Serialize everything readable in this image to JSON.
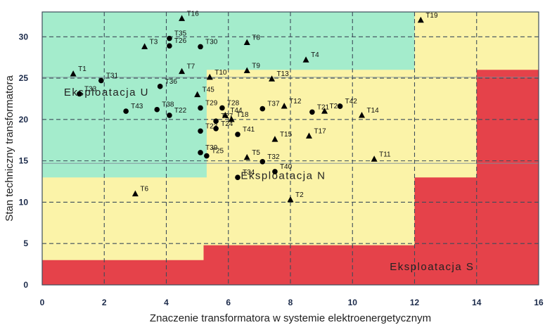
{
  "chart_data": {
    "type": "scatter",
    "title": "",
    "xlabel": "Znaczenie transformatora w systemie elektroenergetycznym",
    "ylabel": "Stan techniczny transformatora",
    "xlim": [
      0,
      16
    ],
    "ylim": [
      0,
      33
    ],
    "xticks": [
      "0",
      "2",
      "4",
      "6",
      "8",
      "10",
      "12",
      "14",
      "16"
    ],
    "yticks": [
      "0",
      "5",
      "10",
      "15",
      "20",
      "25",
      "30"
    ],
    "grid": true,
    "zones": [
      {
        "name": "Eksploatacja U",
        "color": "#a4eccc"
      },
      {
        "name": "Eksploatacja N",
        "color": "#fbf3a8"
      },
      {
        "name": "Eksploatacja S",
        "color": "#e5424a"
      }
    ],
    "markers": {
      "triangle": "▲",
      "circle": "●"
    },
    "points": [
      {
        "label": "T1",
        "x": 1.0,
        "y": 25.5,
        "marker": "triangle"
      },
      {
        "label": "T2",
        "x": 8.0,
        "y": 10.3,
        "marker": "triangle"
      },
      {
        "label": "T3",
        "x": 3.3,
        "y": 28.8,
        "marker": "triangle"
      },
      {
        "label": "T4",
        "x": 8.5,
        "y": 27.2,
        "marker": "triangle"
      },
      {
        "label": "T5",
        "x": 6.6,
        "y": 15.4,
        "marker": "triangle"
      },
      {
        "label": "T6",
        "x": 3.0,
        "y": 11.0,
        "marker": "triangle"
      },
      {
        "label": "T7",
        "x": 4.5,
        "y": 25.8,
        "marker": "triangle"
      },
      {
        "label": "T8",
        "x": 6.6,
        "y": 29.3,
        "marker": "triangle"
      },
      {
        "label": "T9",
        "x": 6.6,
        "y": 25.9,
        "marker": "triangle"
      },
      {
        "label": "T10",
        "x": 5.4,
        "y": 25.1,
        "marker": "triangle"
      },
      {
        "label": "T11",
        "x": 10.7,
        "y": 15.2,
        "marker": "triangle"
      },
      {
        "label": "T12",
        "x": 7.8,
        "y": 21.6,
        "marker": "triangle"
      },
      {
        "label": "T13",
        "x": 7.4,
        "y": 24.9,
        "marker": "triangle"
      },
      {
        "label": "T14",
        "x": 10.3,
        "y": 20.5,
        "marker": "triangle"
      },
      {
        "label": "T15",
        "x": 7.5,
        "y": 17.6,
        "marker": "triangle"
      },
      {
        "label": "T16",
        "x": 4.5,
        "y": 32.2,
        "marker": "triangle"
      },
      {
        "label": "T17",
        "x": 8.6,
        "y": 18.0,
        "marker": "triangle"
      },
      {
        "label": "T18",
        "x": 6.1,
        "y": 20.0,
        "marker": "triangle"
      },
      {
        "label": "T19",
        "x": 12.2,
        "y": 32.0,
        "marker": "triangle"
      },
      {
        "label": "T20",
        "x": 9.1,
        "y": 21.0,
        "marker": "triangle"
      },
      {
        "label": "T21",
        "x": 8.7,
        "y": 20.9,
        "marker": "circle"
      },
      {
        "label": "T22",
        "x": 4.1,
        "y": 20.5,
        "marker": "circle"
      },
      {
        "label": "T23",
        "x": 5.1,
        "y": 18.6,
        "marker": "circle"
      },
      {
        "label": "T24",
        "x": 5.6,
        "y": 18.9,
        "marker": "circle"
      },
      {
        "label": "T25",
        "x": 5.3,
        "y": 15.6,
        "marker": "circle"
      },
      {
        "label": "T26",
        "x": 4.1,
        "y": 28.9,
        "marker": "circle"
      },
      {
        "label": "T27",
        "x": 5.6,
        "y": 19.8,
        "marker": "circle"
      },
      {
        "label": "T28",
        "x": 5.8,
        "y": 21.4,
        "marker": "circle"
      },
      {
        "label": "T29",
        "x": 5.1,
        "y": 21.4,
        "marker": "circle"
      },
      {
        "label": "T30",
        "x": 5.1,
        "y": 28.8,
        "marker": "circle"
      },
      {
        "label": "T31",
        "x": 1.9,
        "y": 24.7,
        "marker": "circle"
      },
      {
        "label": "T32",
        "x": 7.1,
        "y": 14.9,
        "marker": "circle"
      },
      {
        "label": "T33",
        "x": 1.2,
        "y": 23.1,
        "marker": "circle"
      },
      {
        "label": "T34",
        "x": 6.3,
        "y": 13.0,
        "marker": "circle"
      },
      {
        "label": "T35",
        "x": 4.1,
        "y": 29.8,
        "marker": "circle"
      },
      {
        "label": "T36",
        "x": 3.8,
        "y": 24.0,
        "marker": "circle"
      },
      {
        "label": "T37",
        "x": 7.1,
        "y": 21.3,
        "marker": "circle"
      },
      {
        "label": "T38",
        "x": 3.7,
        "y": 21.2,
        "marker": "circle"
      },
      {
        "label": "T39",
        "x": 5.1,
        "y": 16.0,
        "marker": "circle"
      },
      {
        "label": "T40",
        "x": 7.5,
        "y": 13.7,
        "marker": "circle"
      },
      {
        "label": "T41",
        "x": 6.3,
        "y": 18.2,
        "marker": "circle"
      },
      {
        "label": "T42",
        "x": 9.6,
        "y": 21.6,
        "marker": "circle"
      },
      {
        "label": "T43",
        "x": 2.7,
        "y": 21.0,
        "marker": "circle"
      },
      {
        "label": "T44",
        "x": 5.9,
        "y": 20.5,
        "marker": "triangle"
      },
      {
        "label": "T45",
        "x": 5.0,
        "y": 23.0,
        "marker": "triangle"
      }
    ]
  }
}
